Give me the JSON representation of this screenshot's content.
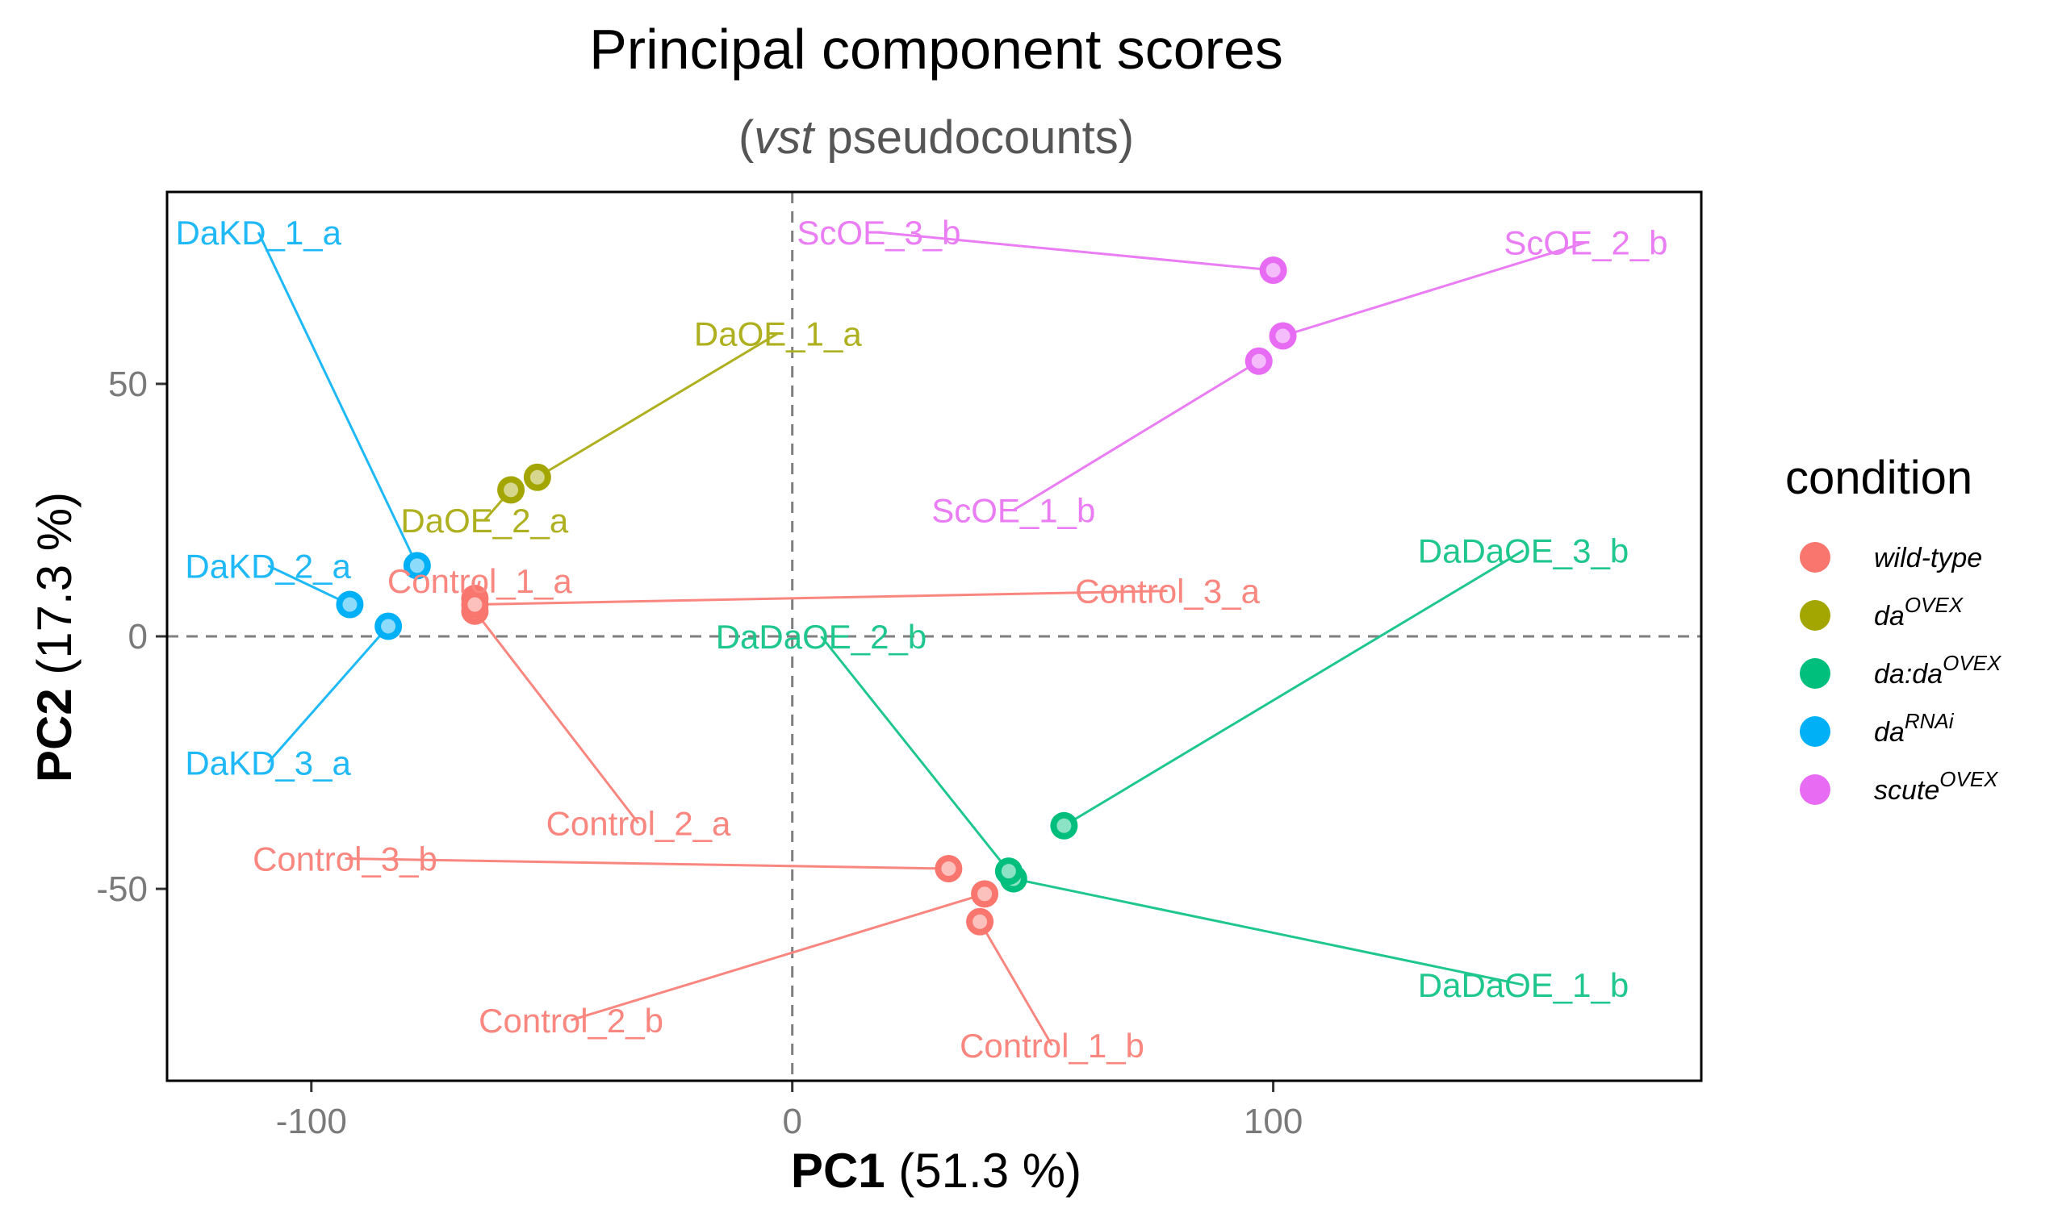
{
  "chart_data": {
    "type": "scatter",
    "title": "Principal component scores",
    "subtitle": {
      "open": "(",
      "italic": "vst",
      "rest": " pseudocounts)"
    },
    "xlabel": {
      "bold": "PC1",
      "rest": " (51.3 %)"
    },
    "ylabel": {
      "bold": "PC2",
      "rest": " (17.3 %)"
    },
    "xlim": [
      -130,
      189
    ],
    "ylim": [
      -88,
      88
    ],
    "x_ticks": [
      -100,
      0,
      100
    ],
    "x_tick_labels": [
      "-100",
      "0",
      "100"
    ],
    "y_ticks": [
      -50,
      0,
      50
    ],
    "y_tick_labels": [
      "-50",
      "0",
      "50"
    ],
    "grid": false,
    "reference_lines": {
      "x": 0,
      "y": 0,
      "style": "dashed"
    },
    "legend": {
      "title": "condition",
      "position": "right",
      "entries": [
        {
          "id": "wt",
          "base": "wild-type",
          "sup": "",
          "color": "#F8766D"
        },
        {
          "id": "daovex",
          "base": "da",
          "sup": "OVEX",
          "color": "#A3A500"
        },
        {
          "id": "dadaovex",
          "base": "da:da",
          "sup": "OVEX",
          "color": "#00BF7D"
        },
        {
          "id": "darnai",
          "base": "da",
          "sup": "RNAi",
          "color": "#00B0F6"
        },
        {
          "id": "scuteovex",
          "base": "scute",
          "sup": "OVEX",
          "color": "#E76BF3"
        }
      ]
    },
    "points": [
      {
        "label": "Control_1_a",
        "group": "wt",
        "x": -66,
        "y": 7.5,
        "lx": -65,
        "ly": 11,
        "anchor": "middle"
      },
      {
        "label": "Control_2_a",
        "group": "wt",
        "x": -66,
        "y": 5,
        "lx": -32,
        "ly": -37,
        "anchor": "middle"
      },
      {
        "label": "Control_3_a",
        "group": "wt",
        "x": -66,
        "y": 6.3,
        "lx": 78,
        "ly": 9,
        "anchor": "middle"
      },
      {
        "label": "Control_1_b",
        "group": "wt",
        "x": 39,
        "y": -56.5,
        "lx": 54,
        "ly": -81,
        "anchor": "middle"
      },
      {
        "label": "Control_2_b",
        "group": "wt",
        "x": 40,
        "y": -51,
        "lx": -46,
        "ly": -76,
        "anchor": "middle"
      },
      {
        "label": "Control_3_b",
        "group": "wt",
        "x": 32.5,
        "y": -46,
        "lx": -93,
        "ly": -44,
        "anchor": "middle"
      },
      {
        "label": "DaOE_1_a",
        "group": "daovex",
        "x": -53,
        "y": 31.5,
        "lx": -3,
        "ly": 60,
        "anchor": "middle"
      },
      {
        "label": "DaOE_2_a",
        "group": "daovex",
        "x": -58.5,
        "y": 29,
        "lx": -64,
        "ly": 23,
        "anchor": "middle"
      },
      {
        "label": "DaDaOE_1_b",
        "group": "dadaovex",
        "x": 46,
        "y": -48,
        "lx": 152,
        "ly": -69,
        "anchor": "middle"
      },
      {
        "label": "DaDaOE_2_b",
        "group": "dadaovex",
        "x": 45,
        "y": -46.5,
        "lx": 6,
        "ly": 0,
        "anchor": "middle"
      },
      {
        "label": "DaDaOE_3_b",
        "group": "dadaovex",
        "x": 56.5,
        "y": -37.5,
        "lx": 152,
        "ly": 17,
        "anchor": "middle"
      },
      {
        "label": "DaKD_1_a",
        "group": "darnai",
        "x": -78,
        "y": 14,
        "lx": -111,
        "ly": 80,
        "anchor": "middle"
      },
      {
        "label": "DaKD_2_a",
        "group": "darnai",
        "x": -92,
        "y": 6.3,
        "lx": -109,
        "ly": 14,
        "anchor": "middle"
      },
      {
        "label": "DaKD_3_a",
        "group": "darnai",
        "x": -84,
        "y": 2,
        "lx": -109,
        "ly": -25,
        "anchor": "middle"
      },
      {
        "label": "ScOE_1_b",
        "group": "scuteovex",
        "x": 97,
        "y": 54.5,
        "lx": 46,
        "ly": 25,
        "anchor": "middle"
      },
      {
        "label": "ScOE_2_b",
        "group": "scuteovex",
        "x": 102,
        "y": 59.5,
        "lx": 165,
        "ly": 78,
        "anchor": "middle"
      },
      {
        "label": "ScOE_3_b",
        "group": "scuteovex",
        "x": 100,
        "y": 72.5,
        "lx": 18,
        "ly": 80,
        "anchor": "middle"
      }
    ]
  }
}
